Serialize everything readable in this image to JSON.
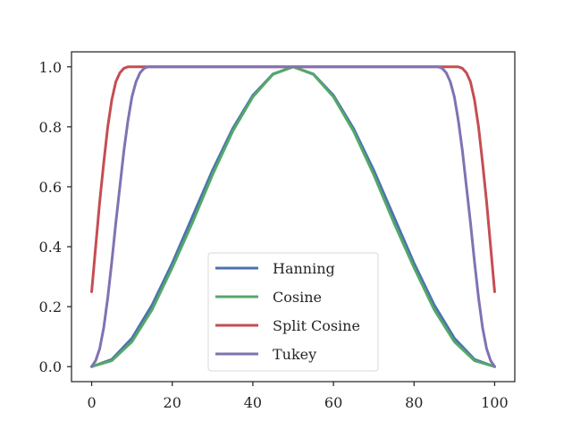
{
  "chart_data": {
    "type": "line",
    "title": "",
    "xlabel": "",
    "ylabel": "",
    "xlim": [
      -5,
      105
    ],
    "ylim": [
      -0.05,
      1.05
    ],
    "x_ticks": [
      0,
      20,
      40,
      60,
      80,
      100
    ],
    "x_tick_labels": [
      "0",
      "20",
      "40",
      "60",
      "80",
      "100"
    ],
    "y_ticks": [
      0.0,
      0.2,
      0.4,
      0.6,
      0.8,
      1.0
    ],
    "y_tick_labels": [
      "0.0",
      "0.2",
      "0.4",
      "0.6",
      "0.8",
      "1.0"
    ],
    "grid": false,
    "legend": {
      "position": "lower-center",
      "entries": [
        "Hanning",
        "Cosine",
        "Split Cosine",
        "Tukey"
      ]
    },
    "series": [
      {
        "name": "Hanning",
        "color": "#4c72b0",
        "x": [
          0,
          5,
          10,
          15,
          20,
          25,
          30,
          35,
          40,
          45,
          50,
          55,
          60,
          65,
          70,
          75,
          80,
          85,
          90,
          95,
          100
        ],
        "y": [
          0.0,
          0.024,
          0.095,
          0.206,
          0.345,
          0.5,
          0.655,
          0.794,
          0.905,
          0.976,
          1.0,
          0.976,
          0.905,
          0.794,
          0.655,
          0.5,
          0.345,
          0.206,
          0.095,
          0.024,
          0.0
        ]
      },
      {
        "name": "Cosine",
        "color": "#55a868",
        "x": [
          0,
          5,
          10,
          15,
          20,
          25,
          30,
          35,
          40,
          45,
          50,
          55,
          60,
          65,
          70,
          75,
          80,
          85,
          90,
          95,
          100
        ],
        "y": [
          0.0,
          0.02,
          0.083,
          0.19,
          0.33,
          0.48,
          0.64,
          0.785,
          0.9,
          0.975,
          1.0,
          0.975,
          0.9,
          0.785,
          0.64,
          0.48,
          0.33,
          0.19,
          0.083,
          0.02,
          0.0
        ]
      },
      {
        "name": "Split Cosine",
        "color": "#c44e52",
        "x": [
          0,
          1,
          2,
          3,
          4,
          5,
          6,
          7,
          8,
          9,
          10,
          90,
          91,
          92,
          93,
          94,
          95,
          96,
          97,
          98,
          99,
          100
        ],
        "y": [
          0.25,
          0.4,
          0.55,
          0.68,
          0.8,
          0.89,
          0.95,
          0.98,
          0.995,
          1.0,
          1.0,
          1.0,
          1.0,
          0.995,
          0.98,
          0.95,
          0.89,
          0.8,
          0.68,
          0.55,
          0.4,
          0.25
        ]
      },
      {
        "name": "Tukey",
        "color": "#8172b2",
        "x": [
          0,
          1,
          2,
          3,
          4,
          5,
          6,
          7,
          8,
          9,
          10,
          11,
          12,
          13,
          14,
          15,
          85,
          86,
          87,
          88,
          89,
          90,
          91,
          92,
          93,
          94,
          95,
          96,
          97,
          98,
          99,
          100
        ],
        "y": [
          0.0,
          0.02,
          0.06,
          0.13,
          0.23,
          0.35,
          0.48,
          0.6,
          0.72,
          0.82,
          0.9,
          0.95,
          0.98,
          0.995,
          1.0,
          1.0,
          1.0,
          1.0,
          0.995,
          0.98,
          0.95,
          0.9,
          0.82,
          0.72,
          0.6,
          0.48,
          0.35,
          0.23,
          0.13,
          0.06,
          0.02,
          0.0
        ]
      }
    ]
  }
}
